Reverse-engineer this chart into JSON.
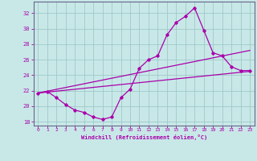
{
  "xlabel": "Windchill (Refroidissement éolien,°C)",
  "xlim": [
    -0.5,
    23.5
  ],
  "ylim": [
    17.5,
    33.5
  ],
  "yticks": [
    18,
    20,
    22,
    24,
    26,
    28,
    30,
    32
  ],
  "xticks": [
    0,
    1,
    2,
    3,
    4,
    5,
    6,
    7,
    8,
    9,
    10,
    11,
    12,
    13,
    14,
    15,
    16,
    17,
    18,
    19,
    20,
    21,
    22,
    23
  ],
  "bg_color": "#c8e8e8",
  "grid_color": "#a0c8c8",
  "line_color": "#aa00aa",
  "line1_x": [
    0,
    1,
    2,
    3,
    4,
    5,
    6,
    7,
    8,
    9,
    10,
    11,
    12,
    13,
    14,
    15,
    16,
    17,
    18,
    19,
    20,
    21,
    22,
    23
  ],
  "line1_y": [
    21.7,
    21.9,
    21.1,
    20.2,
    19.5,
    19.2,
    18.6,
    18.3,
    18.6,
    21.1,
    22.2,
    24.9,
    26.0,
    26.5,
    29.2,
    30.8,
    31.6,
    32.7,
    29.8,
    26.9,
    26.5,
    25.1,
    24.6,
    24.6
  ],
  "line2_x": [
    0,
    23
  ],
  "line2_y": [
    21.7,
    24.5
  ],
  "line3_x": [
    0,
    23
  ],
  "line3_y": [
    21.7,
    27.2
  ]
}
